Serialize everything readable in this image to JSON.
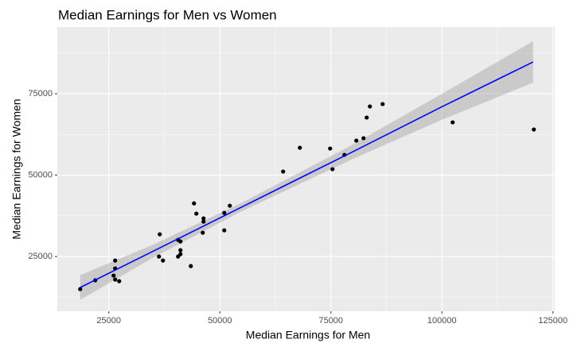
{
  "chart_data": {
    "type": "scatter",
    "title": "Median Earnings for Men vs Women",
    "x_label": "Median Earnings for Men",
    "y_label": "Median Earnings for Women",
    "x": [
      18550,
      21950,
      26430,
      26430,
      26080,
      26430,
      27330,
      36470,
      36290,
      37190,
      40590,
      41130,
      41130,
      41130,
      40590,
      43460,
      44180,
      44710,
      46330,
      46330,
      46150,
      50990,
      50990,
      52240,
      64250,
      68010,
      74820,
      75360,
      78050,
      80730,
      82350,
      83060,
      83780,
      86650,
      102420,
      120700
    ],
    "values": [
      15000,
      17700,
      23780,
      21340,
      19150,
      17930,
      17440,
      31830,
      25000,
      23780,
      30120,
      29630,
      26950,
      25730,
      25000,
      22070,
      41340,
      38170,
      36710,
      35730,
      32320,
      38410,
      33050,
      40610,
      51100,
      58410,
      58170,
      51830,
      56220,
      60610,
      61340,
      67680,
      71100,
      71830,
      66220,
      64020
    ],
    "color": "#000000",
    "fit": {
      "x": [
        18550,
        35000,
        55000,
        80000,
        100000,
        120520
      ],
      "values": [
        15490,
        26665,
        40250,
        57233,
        71000,
        84760
      ],
      "lower": [
        11710,
        24665,
        38950,
        55033,
        67000,
        78410
      ],
      "upper": [
        19270,
        28665,
        41550,
        59433,
        75000,
        91110
      ],
      "color": "#0000ff",
      "band_color": "#999999"
    },
    "xlim": [
      13400,
      125400
    ],
    "ylim": [
      8200,
      95500
    ],
    "xticks": [
      25000,
      50000,
      75000,
      100000,
      125000
    ],
    "yticks": [
      25000,
      50000,
      75000
    ],
    "grid": true
  }
}
